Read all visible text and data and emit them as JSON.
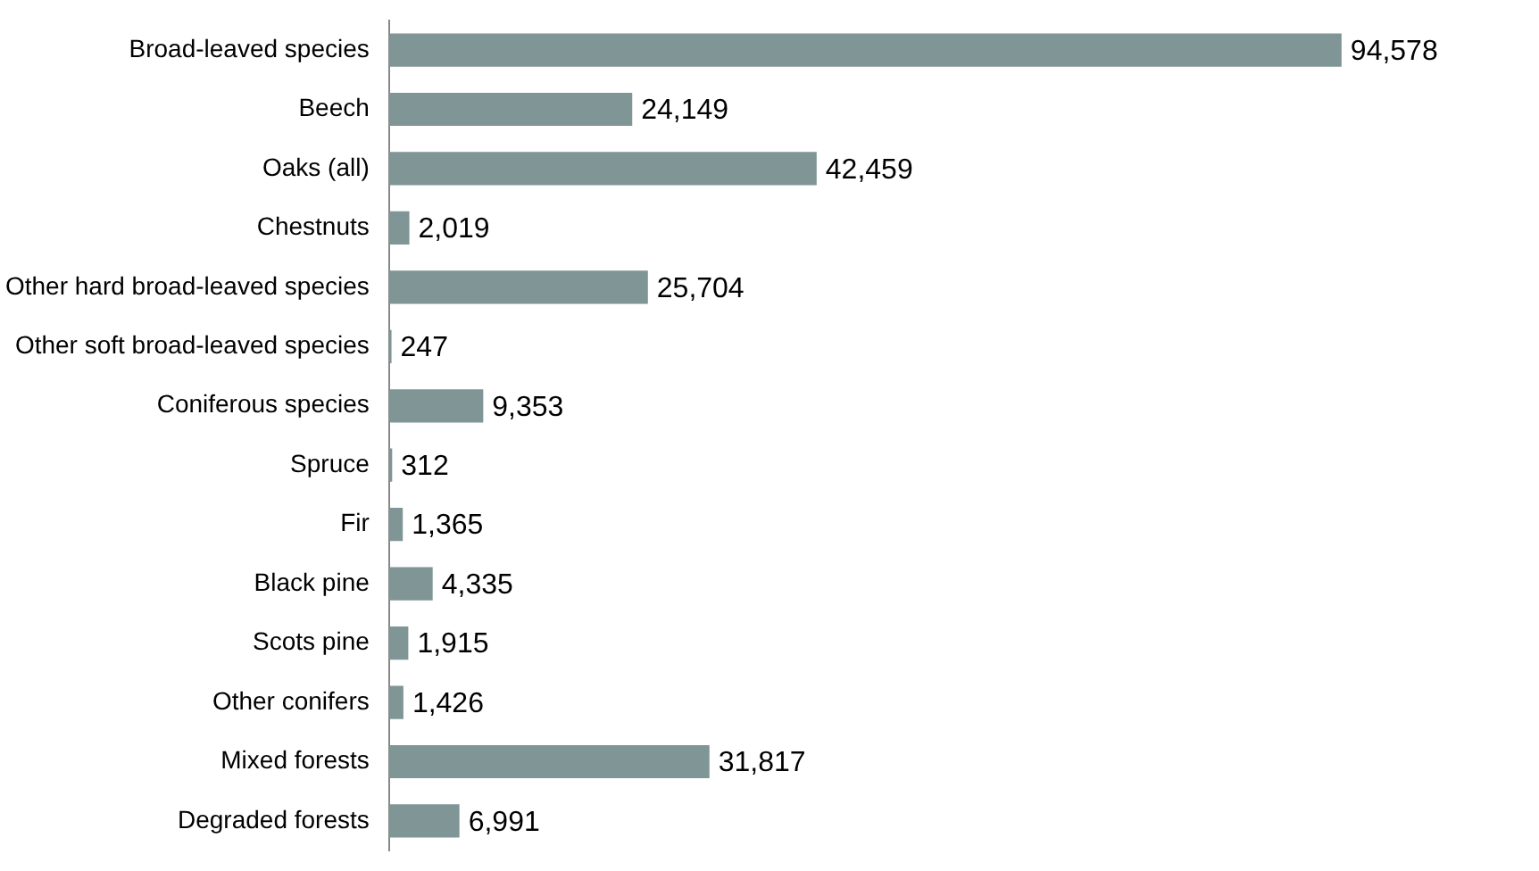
{
  "chart_data": {
    "type": "bar",
    "orientation": "horizontal",
    "value_labels": [
      "94,578",
      "24,149",
      "42,459",
      "2,019",
      "25,704",
      "247",
      "9,353",
      "312",
      "1,365",
      "4,335",
      "1,915",
      "1,426",
      "31,817",
      "6,991"
    ],
    "categories": [
      "Broad-leaved species",
      "Beech",
      "Oaks (all)",
      "Chestnuts",
      "Other hard broad-leaved species",
      "Other soft broad-leaved species",
      "Coniferous species",
      "Spruce",
      "Fir",
      "Black pine",
      "Scots pine",
      "Other conifers",
      "Mixed forests",
      "Degraded forests"
    ],
    "values": [
      94578,
      24149,
      42459,
      2019,
      25704,
      247,
      9353,
      312,
      1365,
      4335,
      1915,
      1426,
      31817,
      6991
    ],
    "color": "#7f9596"
  }
}
